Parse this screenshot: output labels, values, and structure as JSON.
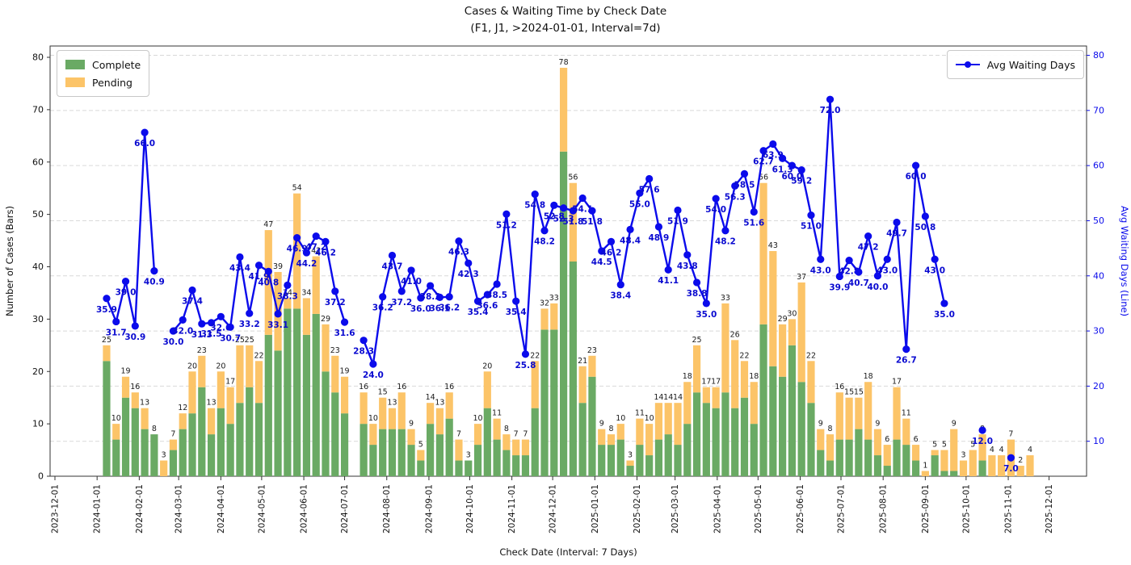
{
  "title": "Cases & Waiting Time by Check Date",
  "subtitle": "(F1, J1, >2024-01-01, Interval=7d)",
  "legend": {
    "complete_label": "Complete",
    "pending_label": "Pending",
    "line_label": "Avg Waiting Days"
  },
  "axes": {
    "x_label": "Check Date (Interval: 7 Days)",
    "y_left_label": "Number of Cases (Bars)",
    "y_right_label": "Avg Waiting Days (Line)",
    "y_left_ticks": [
      0,
      10,
      20,
      30,
      40,
      50,
      60,
      70,
      80
    ],
    "y_right_ticks": [
      10,
      20,
      30,
      40,
      50,
      60,
      70,
      80
    ],
    "x_tick_labels": [
      "2023-12-01",
      "2024-01-01",
      "2024-02-01",
      "2024-03-01",
      "2024-04-01",
      "2024-05-01",
      "2024-06-01",
      "2024-07-01",
      "2024-08-01",
      "2024-09-01",
      "2024-10-01",
      "2024-11-01",
      "2024-12-01",
      "2025-01-01",
      "2025-02-01",
      "2025-03-01",
      "2025-04-01",
      "2025-05-01",
      "2025-06-01",
      "2025-07-01",
      "2025-08-01",
      "2025-09-01",
      "2025-10-01",
      "2025-11-01",
      "2025-12-01"
    ]
  },
  "colors": {
    "complete": "#6aaa64",
    "pending": "#fcc468",
    "line": "#0b0beb",
    "line_label": "#0a0ad0",
    "bar_label": "#1a1a1a",
    "grid": "#d9d9d9",
    "axis": "#333333"
  },
  "chart_data": {
    "type": "bar+line",
    "title": "Cases & Waiting Time by Check Date",
    "subtitle": "(F1, J1, >2024-01-01, Interval=7d)",
    "x_start_date": "2024-01-08",
    "x_interval_days": 7,
    "x_axis_start": "2023-12-01",
    "x_axis_end": "2025-12-01",
    "ylim_left": [
      0,
      80
    ],
    "ylabel_left": "Number of Cases (Bars)",
    "ylabel_right": "Avg Waiting Days (Line)",
    "grid": "dashed-horizontal",
    "series": [
      {
        "name": "Complete",
        "type": "bar-stacked",
        "values": [
          22,
          7,
          15,
          13,
          9,
          8,
          0,
          5,
          9,
          12,
          17,
          8,
          13,
          10,
          14,
          17,
          14,
          27,
          24,
          32,
          32,
          27,
          31,
          20,
          16,
          12,
          0,
          10,
          6,
          9,
          9,
          9,
          6,
          3,
          10,
          8,
          11,
          3,
          3,
          6,
          13,
          7,
          5,
          4,
          4,
          13,
          28,
          28,
          62,
          41,
          14,
          19,
          6,
          6,
          7,
          2,
          6,
          4,
          7,
          8,
          6,
          10,
          16,
          14,
          13,
          16,
          13,
          15,
          10,
          29,
          21,
          19,
          25,
          18,
          14,
          5,
          3,
          7,
          7,
          9,
          7,
          4,
          2,
          7,
          6,
          3,
          0,
          4,
          1,
          1,
          0,
          0,
          3,
          0,
          0,
          0,
          0,
          0
        ]
      },
      {
        "name": "Pending",
        "type": "bar-stacked",
        "values": [
          3,
          3,
          4,
          3,
          4,
          0,
          3,
          2,
          3,
          8,
          6,
          5,
          7,
          7,
          11,
          8,
          8,
          20,
          15,
          2,
          22,
          7,
          11,
          9,
          7,
          7,
          0,
          6,
          4,
          6,
          4,
          7,
          3,
          2,
          4,
          5,
          5,
          4,
          0,
          4,
          7,
          4,
          3,
          3,
          3,
          9,
          4,
          5,
          16,
          15,
          7,
          4,
          3,
          2,
          3,
          1,
          5,
          6,
          7,
          6,
          8,
          8,
          9,
          3,
          4,
          17,
          13,
          7,
          8,
          27,
          22,
          10,
          5,
          19,
          8,
          4,
          5,
          9,
          8,
          6,
          11,
          5,
          4,
          10,
          5,
          3,
          1,
          1,
          4,
          8,
          3,
          5,
          5,
          4,
          4,
          7,
          2,
          4
        ]
      },
      {
        "name": "Avg Waiting Days",
        "type": "line",
        "values": [
          35.9,
          31.7,
          39.0,
          30.9,
          66.0,
          40.9,
          null,
          30.0,
          32.0,
          37.4,
          31.3,
          31.5,
          32.6,
          30.7,
          43.4,
          33.2,
          41.9,
          40.8,
          33.1,
          38.3,
          46.9,
          44.2,
          47.2,
          46.2,
          37.2,
          31.6,
          null,
          28.3,
          24.0,
          36.2,
          43.7,
          37.2,
          41.0,
          36.0,
          38.2,
          36.1,
          36.2,
          46.3,
          42.3,
          35.4,
          36.6,
          38.5,
          51.2,
          35.4,
          25.8,
          54.8,
          48.2,
          52.8,
          52.3,
          51.8,
          54.1,
          51.8,
          44.5,
          46.2,
          38.4,
          48.4,
          55.0,
          57.6,
          48.9,
          41.1,
          51.9,
          43.8,
          38.8,
          35.0,
          54.0,
          48.2,
          56.3,
          58.5,
          51.6,
          62.7,
          63.9,
          61.3,
          60.0,
          59.2,
          51.0,
          43.0,
          72.0,
          39.9,
          42.8,
          40.7,
          47.2,
          40.0,
          43.0,
          49.7,
          26.7,
          60.0,
          50.8,
          43.0,
          35.0,
          null,
          null,
          null,
          12.0,
          null,
          null,
          7.0,
          null,
          null
        ]
      }
    ]
  }
}
